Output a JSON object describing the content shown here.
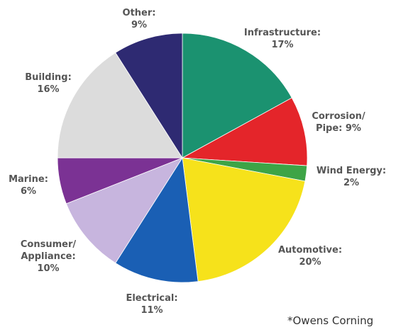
{
  "chart_data": {
    "type": "pie",
    "slices": [
      {
        "name": "Infrastructure",
        "label_lines": [
          "Infrastructure:"
        ],
        "pct_label": "17%",
        "value": 17,
        "color": "#1b9270"
      },
      {
        "name": "Corrosion/Pipe",
        "label_lines": [
          "Corrosion/",
          "Pipe:"
        ],
        "pct_label": "9%",
        "value": 9,
        "color": "#e4252a"
      },
      {
        "name": "Wind Energy",
        "label_lines": [
          "Wind Energy:"
        ],
        "pct_label": "2%",
        "value": 2,
        "color": "#3da446"
      },
      {
        "name": "Automotive",
        "label_lines": [
          "Automotive:"
        ],
        "pct_label": "20%",
        "value": 20,
        "color": "#f6e21b"
      },
      {
        "name": "Electrical",
        "label_lines": [
          "Electrical:"
        ],
        "pct_label": "11%",
        "value": 11,
        "color": "#1a5fb4"
      },
      {
        "name": "Consumer/Appliance",
        "label_lines": [
          "Consumer/",
          "Appliance:"
        ],
        "pct_label": "10%",
        "value": 10,
        "color": "#c7b5de"
      },
      {
        "name": "Marine",
        "label_lines": [
          "Marine:"
        ],
        "pct_label": "6%",
        "value": 6,
        "color": "#7b3294"
      },
      {
        "name": "Building",
        "label_lines": [
          "Building:"
        ],
        "pct_label": "16%",
        "value": 16,
        "color": "#dcdcdc"
      },
      {
        "name": "Other",
        "label_lines": [
          "Other:"
        ],
        "pct_label": "9%",
        "value": 9,
        "color": "#2e2a72"
      }
    ],
    "start_angle_deg": 0,
    "direction": "clockwise"
  },
  "source_note": "*Owens Corning"
}
